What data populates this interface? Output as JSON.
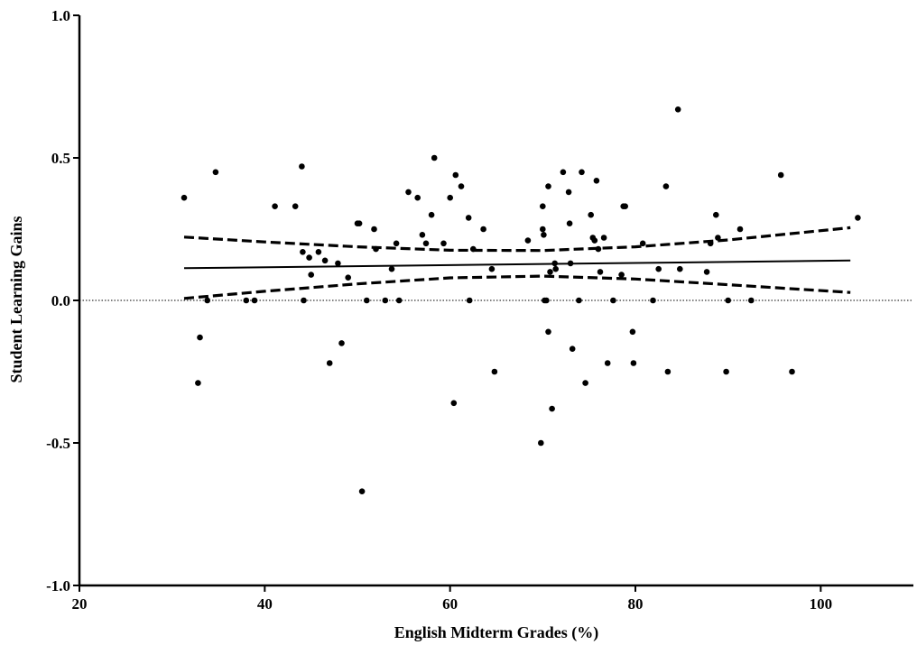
{
  "chart_data": {
    "type": "scatter",
    "title": "",
    "xlabel": "English Midterm Grades (%)",
    "ylabel": "Student Learning Gains",
    "xlim": [
      20,
      110
    ],
    "ylim": [
      -1.0,
      1.0
    ],
    "xticks": [
      20,
      40,
      60,
      80,
      100
    ],
    "yticks": [
      -1.0,
      -0.5,
      0.0,
      0.5,
      1.0
    ],
    "xtick_labels": [
      "20",
      "40",
      "60",
      "80",
      "100"
    ],
    "ytick_labels": [
      "-1.0",
      "-0.5",
      "0.0",
      "0.5",
      "1.0"
    ],
    "grid": false,
    "legend": "none",
    "reference_line_y": 0.0,
    "regression_line": {
      "x": [
        31.3,
        103.2
      ],
      "y": [
        0.113,
        0.14
      ]
    },
    "confidence_band": {
      "x": [
        31.3,
        40,
        50,
        60,
        70,
        80,
        90,
        103.2
      ],
      "upper": [
        0.222,
        0.205,
        0.188,
        0.176,
        0.175,
        0.188,
        0.212,
        0.255
      ],
      "lower": [
        0.007,
        0.032,
        0.058,
        0.079,
        0.085,
        0.075,
        0.055,
        0.028
      ]
    },
    "points": {
      "x": [
        31.3,
        32.8,
        33.0,
        33.8,
        34.7,
        38.0,
        38.9,
        41.1,
        43.3,
        44.0,
        44.1,
        44.2,
        44.8,
        45.0,
        45.8,
        46.5,
        47.0,
        47.9,
        48.3,
        49.0,
        50.0,
        50.2,
        50.5,
        51.0,
        51.8,
        52.0,
        53.0,
        53.7,
        54.2,
        54.5,
        55.5,
        56.5,
        57.0,
        57.4,
        58.0,
        58.3,
        59.3,
        60.0,
        60.4,
        60.6,
        61.2,
        62.0,
        62.1,
        62.5,
        63.6,
        64.5,
        64.8,
        68.4,
        69.8,
        70.0,
        70.0,
        70.1,
        70.2,
        70.4,
        70.6,
        70.6,
        70.8,
        71.0,
        71.3,
        71.4,
        72.2,
        72.8,
        72.9,
        73.0,
        73.2,
        73.9,
        74.2,
        74.6,
        75.2,
        75.4,
        75.6,
        75.8,
        76.0,
        76.2,
        76.6,
        77.0,
        77.6,
        78.5,
        78.7,
        78.9,
        79.7,
        79.8,
        80.8,
        81.9,
        82.5,
        83.3,
        83.5,
        84.6,
        84.8,
        87.7,
        88.1,
        88.7,
        88.9,
        89.8,
        90.0,
        91.3,
        92.5,
        95.7,
        96.9,
        104.0
      ],
      "y": [
        0.36,
        -0.29,
        -0.13,
        0.0,
        0.45,
        0.0,
        0.0,
        0.33,
        0.33,
        0.47,
        0.17,
        0.0,
        0.15,
        0.09,
        0.17,
        0.14,
        -0.22,
        0.13,
        -0.15,
        0.08,
        0.27,
        0.27,
        -0.67,
        0.0,
        0.25,
        0.18,
        0.0,
        0.11,
        0.2,
        0.0,
        0.38,
        0.36,
        0.23,
        0.2,
        0.3,
        0.5,
        0.2,
        0.36,
        -0.36,
        0.44,
        0.4,
        0.29,
        0.0,
        0.18,
        0.25,
        0.11,
        -0.25,
        0.21,
        -0.5,
        0.33,
        0.25,
        0.23,
        0.0,
        0.0,
        -0.11,
        0.4,
        0.1,
        -0.38,
        0.13,
        0.11,
        0.45,
        0.38,
        0.27,
        0.13,
        -0.17,
        0.0,
        0.45,
        -0.29,
        0.3,
        0.22,
        0.21,
        0.42,
        0.18,
        0.1,
        0.22,
        -0.22,
        0.0,
        0.09,
        0.33,
        0.33,
        -0.11,
        -0.22,
        0.2,
        0.0,
        0.11,
        0.4,
        -0.25,
        0.67,
        0.11,
        0.1,
        0.2,
        0.3,
        0.22,
        -0.25,
        0.0,
        0.25,
        0.0,
        0.44,
        -0.25,
        0.29
      ]
    }
  }
}
